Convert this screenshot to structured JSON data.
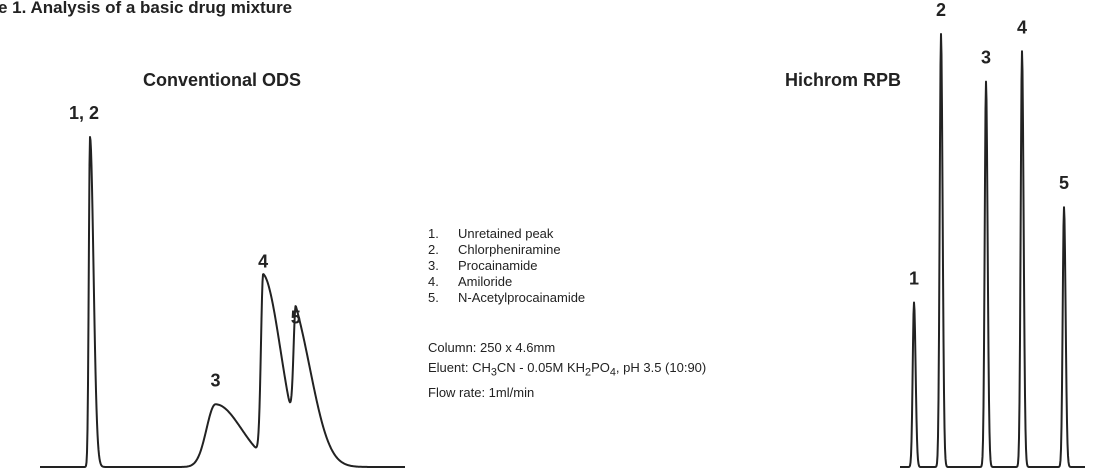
{
  "figure": {
    "title": "e 1. Analysis of a basic drug mixture"
  },
  "legend_items": [
    {
      "num": "1.",
      "name": "Unretained peak"
    },
    {
      "num": "2.",
      "name": "Chlorpheniramine"
    },
    {
      "num": "3.",
      "name": "Procainamide"
    },
    {
      "num": "4.",
      "name": "Amiloride"
    },
    {
      "num": "5.",
      "name": "N-Acetylprocainamide"
    }
  ],
  "conditions": {
    "column": "Column: 250 x 4.6mm",
    "eluent_prefix": "Eluent: CH",
    "eluent_sub1": "3",
    "eluent_mid": "CN - 0.05M KH",
    "eluent_sub2": "2",
    "eluent_mid2": "PO",
    "eluent_sub3": "4",
    "eluent_suffix": ", pH 3.5 (10:90)",
    "flow_rate": "Flow rate: 1ml/min"
  },
  "chart_data": [
    {
      "type": "line",
      "title": "Conventional ODS",
      "xlabel": "",
      "ylabel": "",
      "grid": false,
      "ylim": [
        0,
        100
      ],
      "peaks": [
        {
          "label": "1, 2",
          "position": 0.0,
          "height": 100,
          "width": "narrow",
          "tailing": "low"
        },
        {
          "label": "3",
          "position": 0.5,
          "height": 19,
          "width": "broad",
          "tailing": "high"
        },
        {
          "label": "4",
          "position": 0.69,
          "height": 55,
          "width": "medium",
          "tailing": "high"
        },
        {
          "label": "5",
          "position": 0.82,
          "height": 38,
          "width": "medium",
          "tailing": "high"
        }
      ]
    },
    {
      "type": "line",
      "title": "Hichrom RPB",
      "xlabel": "",
      "ylabel": "",
      "grid": false,
      "ylim": [
        0,
        100
      ],
      "peaks": [
        {
          "label": "1",
          "position": 0.0,
          "height": 38,
          "width": "sharp",
          "tailing": "none"
        },
        {
          "label": "2",
          "position": 0.18,
          "height": 100,
          "width": "sharp",
          "tailing": "none"
        },
        {
          "label": "3",
          "position": 0.48,
          "height": 89,
          "width": "sharp",
          "tailing": "none"
        },
        {
          "label": "4",
          "position": 0.72,
          "height": 96,
          "width": "sharp",
          "tailing": "none"
        },
        {
          "label": "5",
          "position": 1.0,
          "height": 60,
          "width": "sharp",
          "tailing": "none"
        }
      ]
    }
  ]
}
